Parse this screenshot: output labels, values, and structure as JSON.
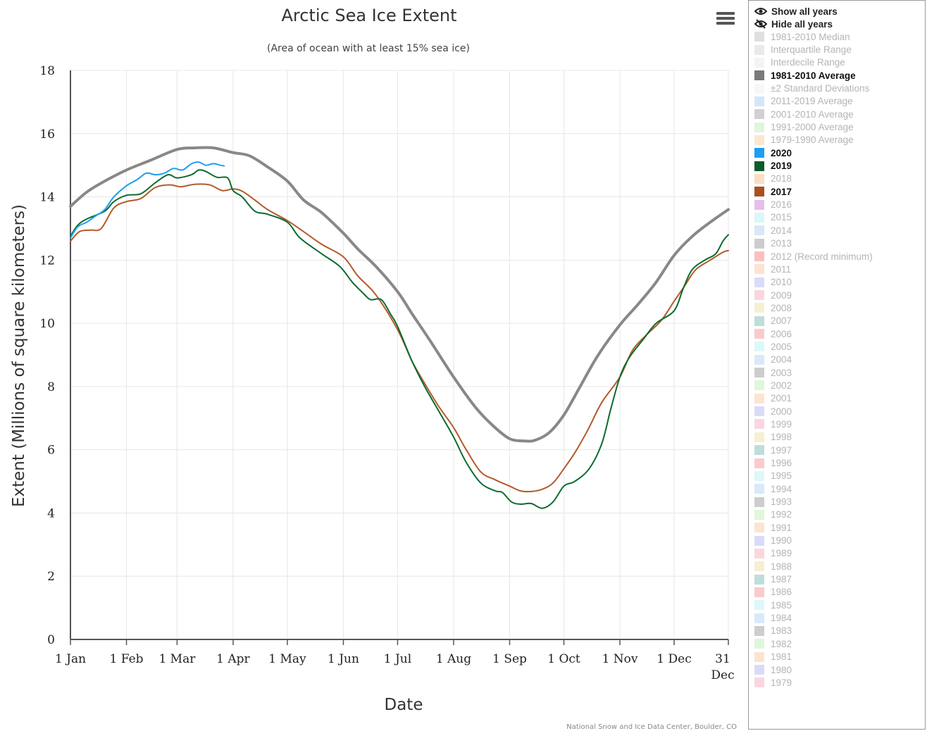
{
  "chart_data": {
    "type": "line",
    "title": "Arctic Sea Ice Extent",
    "subtitle": "(Area of ocean with at least 15% sea ice)",
    "xlabel": "Date",
    "ylabel": "Extent (Millions of square kilometers)",
    "xlim": [
      1,
      365
    ],
    "ylim": [
      0,
      18
    ],
    "yticks": [
      0,
      2,
      4,
      6,
      8,
      10,
      12,
      14,
      16,
      18
    ],
    "xticks": [
      {
        "day": 1,
        "label": "1 Jan"
      },
      {
        "day": 32,
        "label": "1 Feb"
      },
      {
        "day": 60,
        "label": "1 Mar"
      },
      {
        "day": 91,
        "label": "1 Apr"
      },
      {
        "day": 121,
        "label": "1 May"
      },
      {
        "day": 152,
        "label": "1 Jun"
      },
      {
        "day": 182,
        "label": "1 Jul"
      },
      {
        "day": 213,
        "label": "1 Aug"
      },
      {
        "day": 244,
        "label": "1 Sep"
      },
      {
        "day": 274,
        "label": "1 Oct"
      },
      {
        "day": 305,
        "label": "1 Nov"
      },
      {
        "day": 335,
        "label": "1 Dec"
      },
      {
        "day": 365,
        "label": "31",
        "label2": "Dec"
      }
    ],
    "grid": true,
    "legend_placement": "right",
    "credits": "National Snow and Ice Data Center, Boulder, CO",
    "series": [
      {
        "name": "1981-2010 Average",
        "color": "#888888",
        "width": 4,
        "points": [
          [
            1,
            13.7
          ],
          [
            10,
            14.15
          ],
          [
            20,
            14.5
          ],
          [
            32,
            14.85
          ],
          [
            45,
            15.15
          ],
          [
            60,
            15.5
          ],
          [
            70,
            15.55
          ],
          [
            80,
            15.55
          ],
          [
            91,
            15.4
          ],
          [
            100,
            15.3
          ],
          [
            110,
            14.95
          ],
          [
            121,
            14.5
          ],
          [
            130,
            13.9
          ],
          [
            140,
            13.5
          ],
          [
            152,
            12.85
          ],
          [
            160,
            12.35
          ],
          [
            170,
            11.8
          ],
          [
            182,
            11.0
          ],
          [
            190,
            10.3
          ],
          [
            200,
            9.45
          ],
          [
            213,
            8.3
          ],
          [
            225,
            7.35
          ],
          [
            235,
            6.75
          ],
          [
            244,
            6.35
          ],
          [
            252,
            6.28
          ],
          [
            258,
            6.3
          ],
          [
            266,
            6.55
          ],
          [
            274,
            7.1
          ],
          [
            283,
            8.0
          ],
          [
            293,
            9.0
          ],
          [
            305,
            9.95
          ],
          [
            315,
            10.6
          ],
          [
            325,
            11.3
          ],
          [
            335,
            12.15
          ],
          [
            345,
            12.75
          ],
          [
            355,
            13.2
          ],
          [
            365,
            13.6
          ]
        ]
      },
      {
        "name": "2017",
        "color": "#b35a2a",
        "width": 2,
        "points": [
          [
            1,
            12.6
          ],
          [
            6,
            12.9
          ],
          [
            12,
            12.95
          ],
          [
            18,
            13.0
          ],
          [
            25,
            13.65
          ],
          [
            32,
            13.85
          ],
          [
            40,
            13.95
          ],
          [
            48,
            14.3
          ],
          [
            56,
            14.38
          ],
          [
            62,
            14.32
          ],
          [
            70,
            14.4
          ],
          [
            78,
            14.38
          ],
          [
            85,
            14.2
          ],
          [
            91,
            14.25
          ],
          [
            96,
            14.18
          ],
          [
            103,
            13.9
          ],
          [
            110,
            13.6
          ],
          [
            121,
            13.25
          ],
          [
            130,
            12.9
          ],
          [
            140,
            12.5
          ],
          [
            152,
            12.1
          ],
          [
            160,
            11.5
          ],
          [
            170,
            10.9
          ],
          [
            182,
            9.8
          ],
          [
            190,
            8.8
          ],
          [
            198,
            8.0
          ],
          [
            205,
            7.35
          ],
          [
            213,
            6.7
          ],
          [
            220,
            6.0
          ],
          [
            228,
            5.3
          ],
          [
            236,
            5.05
          ],
          [
            244,
            4.85
          ],
          [
            250,
            4.7
          ],
          [
            256,
            4.68
          ],
          [
            262,
            4.75
          ],
          [
            268,
            4.95
          ],
          [
            274,
            5.4
          ],
          [
            280,
            5.9
          ],
          [
            287,
            6.6
          ],
          [
            295,
            7.5
          ],
          [
            305,
            8.3
          ],
          [
            312,
            9.15
          ],
          [
            320,
            9.65
          ],
          [
            328,
            10.1
          ],
          [
            335,
            10.7
          ],
          [
            341,
            11.2
          ],
          [
            347,
            11.7
          ],
          [
            355,
            12.0
          ],
          [
            362,
            12.25
          ],
          [
            365,
            12.3
          ]
        ]
      },
      {
        "name": "2019",
        "color": "#0b6b2f",
        "width": 2,
        "points": [
          [
            1,
            12.75
          ],
          [
            5,
            13.1
          ],
          [
            10,
            13.3
          ],
          [
            20,
            13.55
          ],
          [
            25,
            13.85
          ],
          [
            32,
            14.05
          ],
          [
            40,
            14.1
          ],
          [
            48,
            14.45
          ],
          [
            55,
            14.7
          ],
          [
            60,
            14.6
          ],
          [
            68,
            14.7
          ],
          [
            72,
            14.85
          ],
          [
            76,
            14.8
          ],
          [
            82,
            14.62
          ],
          [
            88,
            14.6
          ],
          [
            91,
            14.2
          ],
          [
            96,
            14.0
          ],
          [
            103,
            13.55
          ],
          [
            110,
            13.45
          ],
          [
            121,
            13.2
          ],
          [
            128,
            12.7
          ],
          [
            140,
            12.2
          ],
          [
            150,
            11.8
          ],
          [
            157,
            11.3
          ],
          [
            163,
            10.95
          ],
          [
            167,
            10.75
          ],
          [
            173,
            10.75
          ],
          [
            178,
            10.3
          ],
          [
            182,
            9.9
          ],
          [
            190,
            8.8
          ],
          [
            197,
            8.0
          ],
          [
            205,
            7.2
          ],
          [
            213,
            6.4
          ],
          [
            220,
            5.6
          ],
          [
            228,
            4.95
          ],
          [
            236,
            4.7
          ],
          [
            240,
            4.65
          ],
          [
            245,
            4.35
          ],
          [
            250,
            4.28
          ],
          [
            256,
            4.3
          ],
          [
            262,
            4.15
          ],
          [
            268,
            4.35
          ],
          [
            274,
            4.85
          ],
          [
            280,
            5.0
          ],
          [
            288,
            5.4
          ],
          [
            295,
            6.2
          ],
          [
            300,
            7.3
          ],
          [
            305,
            8.3
          ],
          [
            310,
            8.9
          ],
          [
            318,
            9.5
          ],
          [
            325,
            10.0
          ],
          [
            335,
            10.4
          ],
          [
            340,
            11.1
          ],
          [
            345,
            11.7
          ],
          [
            352,
            12.0
          ],
          [
            358,
            12.2
          ],
          [
            362,
            12.6
          ],
          [
            365,
            12.8
          ]
        ]
      },
      {
        "name": "2020",
        "color": "#1e9ef0",
        "width": 2,
        "points": [
          [
            1,
            12.7
          ],
          [
            5,
            13.05
          ],
          [
            10,
            13.2
          ],
          [
            15,
            13.4
          ],
          [
            20,
            13.6
          ],
          [
            25,
            14.0
          ],
          [
            32,
            14.35
          ],
          [
            38,
            14.55
          ],
          [
            43,
            14.75
          ],
          [
            48,
            14.7
          ],
          [
            53,
            14.75
          ],
          [
            58,
            14.9
          ],
          [
            63,
            14.85
          ],
          [
            68,
            15.05
          ],
          [
            72,
            15.1
          ],
          [
            76,
            15.0
          ],
          [
            80,
            15.05
          ],
          [
            84,
            15.0
          ],
          [
            86,
            14.98
          ]
        ]
      }
    ]
  },
  "legend": {
    "show_all": "Show all years",
    "hide_all": "Hide all years",
    "items": [
      {
        "label": "1981-2010 Median",
        "color": "#b8b8b8",
        "on": false
      },
      {
        "label": "Interquartile Range",
        "color": "#d0d0d0",
        "on": false
      },
      {
        "label": "Interdecile Range",
        "color": "#e6e6e6",
        "on": false
      },
      {
        "label": "1981-2010 Average",
        "color": "#7a7a7a",
        "on": true
      },
      {
        "label": "±2 Standard Deviations",
        "color": "#eeeeee",
        "on": false
      },
      {
        "label": "2011-2019 Average",
        "color": "#9ec9f5",
        "on": false
      },
      {
        "label": "2001-2010 Average",
        "color": "#9a9a9a",
        "on": false
      },
      {
        "label": "1991-2000 Average",
        "color": "#b5eab0",
        "on": false
      },
      {
        "label": "1979-1990 Average",
        "color": "#f8c79a",
        "on": false
      },
      {
        "label": "2020",
        "color": "#1e9ef0",
        "on": true
      },
      {
        "label": "2019",
        "color": "#0b5c2a",
        "on": true
      },
      {
        "label": "2018",
        "color": "#f5b37a",
        "on": false
      },
      {
        "label": "2017",
        "color": "#a94f22",
        "on": true
      },
      {
        "label": "2016",
        "color": "#c86fd6",
        "on": false
      },
      {
        "label": "2015",
        "color": "#aeeef2",
        "on": false
      },
      {
        "label": "2014",
        "color": "#a9ccf2",
        "on": false
      },
      {
        "label": "2013",
        "color": "#8f8f8f",
        "on": false
      },
      {
        "label": "2012 (Record minimum)",
        "color": "#f87070",
        "on": false
      },
      {
        "label": "2011",
        "color": "#f9c49a",
        "on": false
      },
      {
        "label": "2010",
        "color": "#aab0f5",
        "on": false
      },
      {
        "label": "2009",
        "color": "#f7a3b5",
        "on": false
      },
      {
        "label": "2008",
        "color": "#eedc9a",
        "on": false
      },
      {
        "label": "2007",
        "color": "#6fb5ae",
        "on": false
      },
      {
        "label": "2006",
        "color": "#f48b8b",
        "on": false
      },
      {
        "label": "2005",
        "color": "#b4f0f2",
        "on": false
      },
      {
        "label": "2004",
        "color": "#aecff5",
        "on": false
      },
      {
        "label": "2003",
        "color": "#909090",
        "on": false
      },
      {
        "label": "2002",
        "color": "#b7eeb0",
        "on": false
      },
      {
        "label": "2001",
        "color": "#f9c49a",
        "on": false
      },
      {
        "label": "2000",
        "color": "#aab0f5",
        "on": false
      },
      {
        "label": "1999",
        "color": "#f7a3b5",
        "on": false
      },
      {
        "label": "1998",
        "color": "#eedc9a",
        "on": false
      },
      {
        "label": "1997",
        "color": "#6fb5ae",
        "on": false
      },
      {
        "label": "1996",
        "color": "#f48b8b",
        "on": false
      },
      {
        "label": "1995",
        "color": "#b4f0f2",
        "on": false
      },
      {
        "label": "1994",
        "color": "#aecff5",
        "on": false
      },
      {
        "label": "1993",
        "color": "#909090",
        "on": false
      },
      {
        "label": "1992",
        "color": "#b7eeb0",
        "on": false
      },
      {
        "label": "1991",
        "color": "#f9c49a",
        "on": false
      },
      {
        "label": "1990",
        "color": "#aab0f5",
        "on": false
      },
      {
        "label": "1989",
        "color": "#f7a3b5",
        "on": false
      },
      {
        "label": "1988",
        "color": "#eedc9a",
        "on": false
      },
      {
        "label": "1987",
        "color": "#6fb5ae",
        "on": false
      },
      {
        "label": "1986",
        "color": "#f48b8b",
        "on": false
      },
      {
        "label": "1985",
        "color": "#b4f0f2",
        "on": false
      },
      {
        "label": "1984",
        "color": "#aecff5",
        "on": false
      },
      {
        "label": "1983",
        "color": "#909090",
        "on": false
      },
      {
        "label": "1982",
        "color": "#b7eeb0",
        "on": false
      },
      {
        "label": "1981",
        "color": "#f9c49a",
        "on": false
      },
      {
        "label": "1980",
        "color": "#aab0f5",
        "on": false
      },
      {
        "label": "1979",
        "color": "#f7a3b5",
        "on": false
      }
    ]
  },
  "toolbar": {
    "menu_icon": "hamburger-menu-icon"
  }
}
